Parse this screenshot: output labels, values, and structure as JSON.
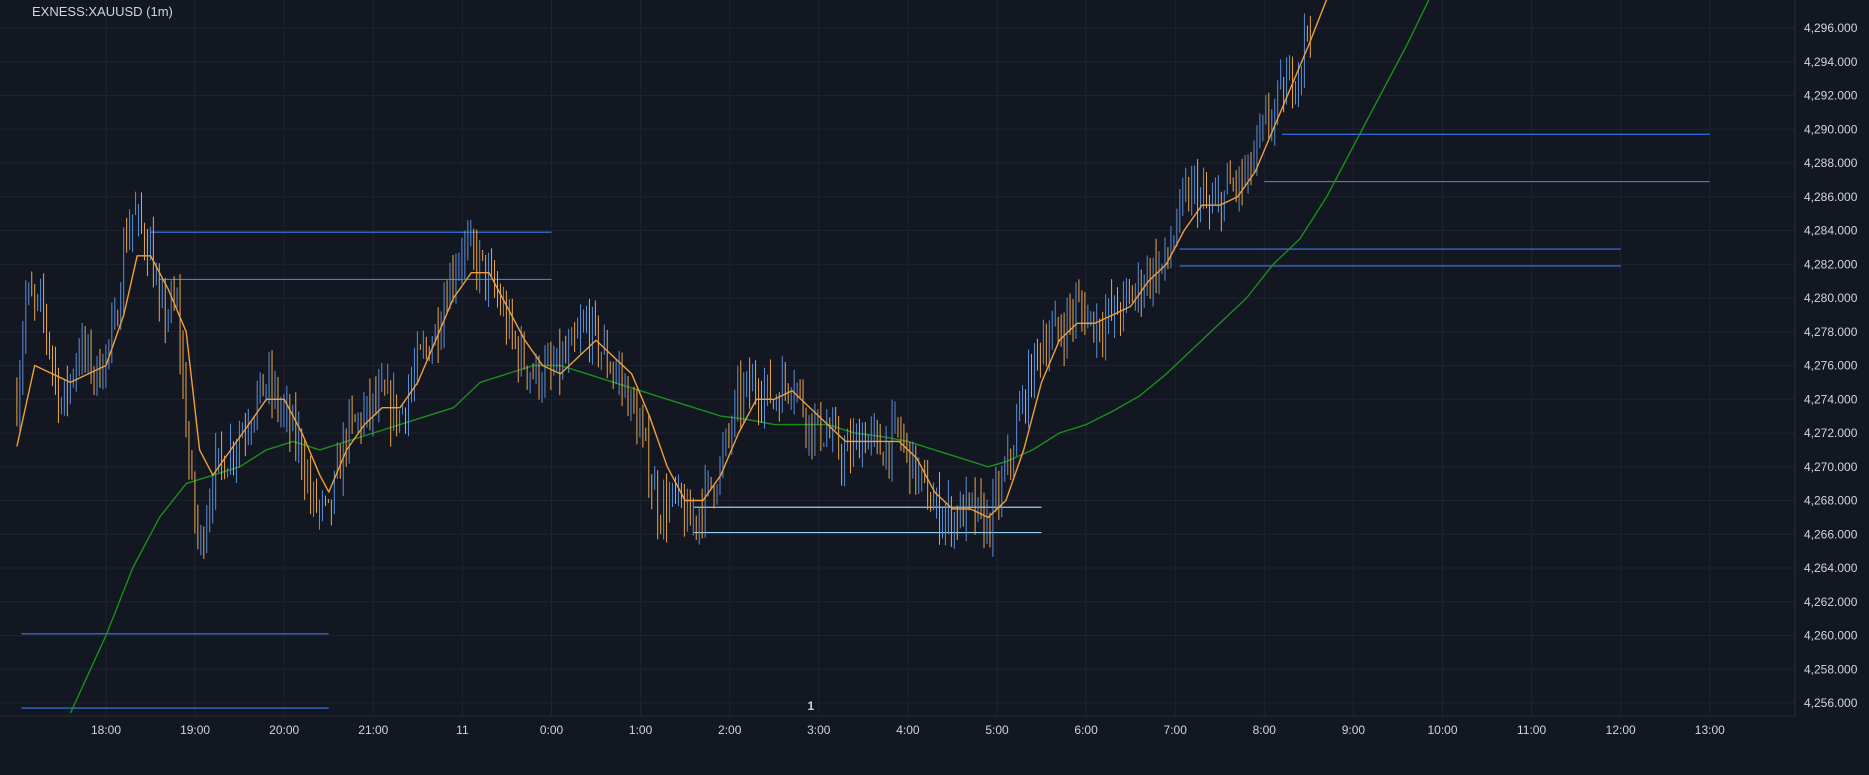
{
  "chart_title": "EXNESS:XAUUSD (1m)",
  "colors": {
    "background": "#131722",
    "grid": "#1f2330",
    "candle_up": "#5b8ed6",
    "candle_down": "#e8a64c",
    "ma_fast": "#f0a03a",
    "ma_slow": "#1a8f1a",
    "level_blue": "#3d7bf0",
    "level_cyan": "#8fd3f0",
    "axis_text": "#d1d4dc"
  },
  "chart_data": {
    "type": "candlestick",
    "title": "EXNESS:XAUUSD (1m)",
    "x_labels": [
      "18:00",
      "19:00",
      "20:00",
      "21:00",
      "11",
      "0:00",
      "1:00",
      "2:00",
      "3:00",
      "4:00",
      "5:00",
      "6:00",
      "7:00",
      "8:00",
      "9:00",
      "10:00",
      "11:00",
      "12:00",
      "13:00"
    ],
    "x_range_hours": [
      17.05,
      37.05
    ],
    "y_ticks": [
      "4,296.000",
      "4,294.000",
      "4,292.000",
      "4,290.000",
      "4,288.000",
      "4,286.000",
      "4,284.000",
      "4,282.000",
      "4,280.000",
      "4,278.000",
      "4,276.000",
      "4,274.000",
      "4,272.000",
      "4,270.000",
      "4,268.000",
      "4,266.000",
      "4,264.000",
      "4,262.000",
      "4,260.000",
      "4,258.000",
      "4,256.000"
    ],
    "ylim": [
      4255.4,
      4297.7
    ],
    "grid": true,
    "price_path_points": [
      [
        17.0,
        4274.0
      ],
      [
        17.1,
        4280.0
      ],
      [
        17.3,
        4279.0
      ],
      [
        17.5,
        4273.5
      ],
      [
        17.7,
        4277.0
      ],
      [
        17.9,
        4275.5
      ],
      [
        18.1,
        4278.0
      ],
      [
        18.2,
        4283.0
      ],
      [
        18.3,
        4285.0
      ],
      [
        18.5,
        4283.0
      ],
      [
        18.6,
        4279.0
      ],
      [
        18.8,
        4279.5
      ],
      [
        18.95,
        4269.0
      ],
      [
        19.05,
        4265.0
      ],
      [
        19.2,
        4269.5
      ],
      [
        19.4,
        4271.0
      ],
      [
        19.6,
        4273.0
      ],
      [
        19.8,
        4275.0
      ],
      [
        20.0,
        4273.0
      ],
      [
        20.2,
        4271.0
      ],
      [
        20.3,
        4268.0
      ],
      [
        20.5,
        4267.0
      ],
      [
        20.7,
        4272.0
      ],
      [
        20.9,
        4273.0
      ],
      [
        21.1,
        4274.0
      ],
      [
        21.3,
        4273.0
      ],
      [
        21.5,
        4276.0
      ],
      [
        21.7,
        4278.0
      ],
      [
        21.85,
        4281.0
      ],
      [
        22.0,
        4283.0
      ],
      [
        22.2,
        4282.0
      ],
      [
        22.4,
        4280.0
      ],
      [
        22.6,
        4277.0
      ],
      [
        22.8,
        4275.5
      ],
      [
        23.0,
        4275.5
      ],
      [
        23.2,
        4276.5
      ],
      [
        23.4,
        4278.5
      ],
      [
        23.6,
        4276.5
      ],
      [
        23.8,
        4275.0
      ],
      [
        24.0,
        4272.0
      ],
      [
        24.2,
        4267.5
      ],
      [
        24.4,
        4268.0
      ],
      [
        24.55,
        4266.5
      ],
      [
        24.7,
        4268.0
      ],
      [
        24.9,
        4270.0
      ],
      [
        25.1,
        4274.0
      ],
      [
        25.3,
        4275.0
      ],
      [
        25.5,
        4274.0
      ],
      [
        25.7,
        4275.5
      ],
      [
        25.9,
        4272.5
      ],
      [
        26.1,
        4272.0
      ],
      [
        26.3,
        4270.5
      ],
      [
        26.5,
        4272.0
      ],
      [
        26.7,
        4271.0
      ],
      [
        26.9,
        4272.0
      ],
      [
        27.1,
        4269.5
      ],
      [
        27.3,
        4267.5
      ],
      [
        27.5,
        4267.0
      ],
      [
        27.7,
        4267.5
      ],
      [
        27.9,
        4266.5
      ],
      [
        28.1,
        4269.5
      ],
      [
        28.3,
        4274.0
      ],
      [
        28.5,
        4277.5
      ],
      [
        28.7,
        4278.0
      ],
      [
        28.9,
        4279.5
      ],
      [
        29.1,
        4278.5
      ],
      [
        29.3,
        4279.0
      ],
      [
        29.5,
        4280.0
      ],
      [
        29.7,
        4281.5
      ],
      [
        29.9,
        4282.0
      ],
      [
        30.05,
        4285.0
      ],
      [
        30.2,
        4286.5
      ],
      [
        30.4,
        4285.0
      ],
      [
        30.6,
        4286.5
      ],
      [
        30.8,
        4287.0
      ],
      [
        31.0,
        4290.0
      ],
      [
        31.2,
        4292.0
      ],
      [
        31.4,
        4294.0
      ],
      [
        31.55,
        4297.5
      ]
    ],
    "ma_fast_points": [
      [
        17.0,
        4271.2
      ],
      [
        17.2,
        4276.0
      ],
      [
        17.4,
        4275.5
      ],
      [
        17.6,
        4275.0
      ],
      [
        17.8,
        4275.5
      ],
      [
        18.0,
        4276.0
      ],
      [
        18.2,
        4279.0
      ],
      [
        18.35,
        4282.5
      ],
      [
        18.5,
        4282.5
      ],
      [
        18.7,
        4280.5
      ],
      [
        18.9,
        4278.0
      ],
      [
        19.05,
        4271.0
      ],
      [
        19.2,
        4269.5
      ],
      [
        19.4,
        4271.0
      ],
      [
        19.6,
        4272.5
      ],
      [
        19.8,
        4274.0
      ],
      [
        20.0,
        4274.0
      ],
      [
        20.2,
        4272.0
      ],
      [
        20.4,
        4269.5
      ],
      [
        20.5,
        4268.5
      ],
      [
        20.7,
        4271.0
      ],
      [
        20.9,
        4272.5
      ],
      [
        21.1,
        4273.5
      ],
      [
        21.3,
        4273.5
      ],
      [
        21.5,
        4275.0
      ],
      [
        21.7,
        4277.5
      ],
      [
        21.9,
        4280.0
      ],
      [
        22.1,
        4281.5
      ],
      [
        22.3,
        4281.5
      ],
      [
        22.5,
        4279.5
      ],
      [
        22.7,
        4277.5
      ],
      [
        22.9,
        4276.0
      ],
      [
        23.1,
        4275.5
      ],
      [
        23.3,
        4276.5
      ],
      [
        23.5,
        4277.5
      ],
      [
        23.7,
        4276.5
      ],
      [
        23.9,
        4275.5
      ],
      [
        24.1,
        4273.0
      ],
      [
        24.3,
        4270.0
      ],
      [
        24.5,
        4268.0
      ],
      [
        24.7,
        4268.0
      ],
      [
        24.9,
        4269.5
      ],
      [
        25.1,
        4272.0
      ],
      [
        25.3,
        4274.0
      ],
      [
        25.5,
        4274.0
      ],
      [
        25.7,
        4274.5
      ],
      [
        25.9,
        4273.5
      ],
      [
        26.1,
        4272.5
      ],
      [
        26.3,
        4271.5
      ],
      [
        26.5,
        4271.5
      ],
      [
        26.7,
        4271.5
      ],
      [
        26.9,
        4271.5
      ],
      [
        27.1,
        4270.5
      ],
      [
        27.3,
        4268.5
      ],
      [
        27.5,
        4267.5
      ],
      [
        27.7,
        4267.5
      ],
      [
        27.9,
        4267.0
      ],
      [
        28.1,
        4268.0
      ],
      [
        28.3,
        4271.0
      ],
      [
        28.5,
        4275.0
      ],
      [
        28.7,
        4277.5
      ],
      [
        28.9,
        4278.5
      ],
      [
        29.1,
        4278.5
      ],
      [
        29.3,
        4279.0
      ],
      [
        29.5,
        4279.5
      ],
      [
        29.7,
        4281.0
      ],
      [
        29.9,
        4282.0
      ],
      [
        30.1,
        4284.0
      ],
      [
        30.3,
        4285.5
      ],
      [
        30.5,
        4285.5
      ],
      [
        30.7,
        4286.0
      ],
      [
        30.9,
        4287.5
      ],
      [
        31.1,
        4290.0
      ],
      [
        31.3,
        4292.5
      ],
      [
        31.5,
        4295.0
      ],
      [
        31.7,
        4297.7
      ]
    ],
    "ma_slow_points": [
      [
        17.6,
        4255.4
      ],
      [
        18.0,
        4260.0
      ],
      [
        18.3,
        4264.0
      ],
      [
        18.6,
        4267.0
      ],
      [
        18.9,
        4269.0
      ],
      [
        19.2,
        4269.5
      ],
      [
        19.5,
        4270.0
      ],
      [
        19.8,
        4271.0
      ],
      [
        20.1,
        4271.5
      ],
      [
        20.4,
        4271.0
      ],
      [
        20.7,
        4271.5
      ],
      [
        21.0,
        4272.0
      ],
      [
        21.3,
        4272.5
      ],
      [
        21.6,
        4273.0
      ],
      [
        21.9,
        4273.5
      ],
      [
        22.2,
        4275.0
      ],
      [
        22.5,
        4275.5
      ],
      [
        22.8,
        4276.0
      ],
      [
        23.1,
        4276.0
      ],
      [
        23.4,
        4275.5
      ],
      [
        23.7,
        4275.0
      ],
      [
        24.0,
        4274.5
      ],
      [
        24.3,
        4274.0
      ],
      [
        24.6,
        4273.5
      ],
      [
        24.9,
        4273.0
      ],
      [
        25.2,
        4272.8
      ],
      [
        25.5,
        4272.5
      ],
      [
        25.8,
        4272.5
      ],
      [
        26.1,
        4272.5
      ],
      [
        26.4,
        4272.0
      ],
      [
        26.7,
        4271.8
      ],
      [
        27.0,
        4271.5
      ],
      [
        27.3,
        4271.0
      ],
      [
        27.6,
        4270.5
      ],
      [
        27.9,
        4270.0
      ],
      [
        28.1,
        4270.3
      ],
      [
        28.4,
        4271.0
      ],
      [
        28.7,
        4272.0
      ],
      [
        29.0,
        4272.5
      ],
      [
        29.3,
        4273.3
      ],
      [
        29.6,
        4274.2
      ],
      [
        29.9,
        4275.5
      ],
      [
        30.2,
        4277.0
      ],
      [
        30.5,
        4278.5
      ],
      [
        30.8,
        4280.0
      ],
      [
        31.1,
        4282.0
      ],
      [
        31.4,
        4283.5
      ],
      [
        31.7,
        4286.0
      ],
      [
        32.0,
        4289.0
      ],
      [
        32.3,
        4292.0
      ],
      [
        32.6,
        4295.0
      ],
      [
        32.85,
        4297.7
      ]
    ],
    "levels": [
      {
        "price": 4283.9,
        "from": 18.5,
        "to": 23.0,
        "color": "level_blue"
      },
      {
        "price": 4281.1,
        "from": 18.6,
        "to": 23.0,
        "color": "level_blue"
      },
      {
        "price": 4267.6,
        "from": 24.6,
        "to": 28.5,
        "color": "level_cyan"
      },
      {
        "price": 4266.1,
        "from": 24.6,
        "to": 28.5,
        "color": "level_cyan"
      },
      {
        "price": 4260.1,
        "from": 17.05,
        "to": 20.5,
        "color": "level_blue"
      },
      {
        "price": 4255.7,
        "from": 17.05,
        "to": 20.5,
        "color": "level_blue"
      },
      {
        "price": 4289.7,
        "from": 31.2,
        "to": 36.0,
        "color": "level_blue"
      },
      {
        "price": 4286.9,
        "from": 31.0,
        "to": 36.0,
        "color": "level_blue"
      },
      {
        "price": 4282.9,
        "from": 30.05,
        "to": 35.0,
        "color": "level_blue"
      },
      {
        "price": 4281.9,
        "from": 30.05,
        "to": 35.0,
        "color": "level_blue"
      }
    ],
    "session_marker": {
      "label": "1",
      "at_hour": 26.0
    }
  }
}
